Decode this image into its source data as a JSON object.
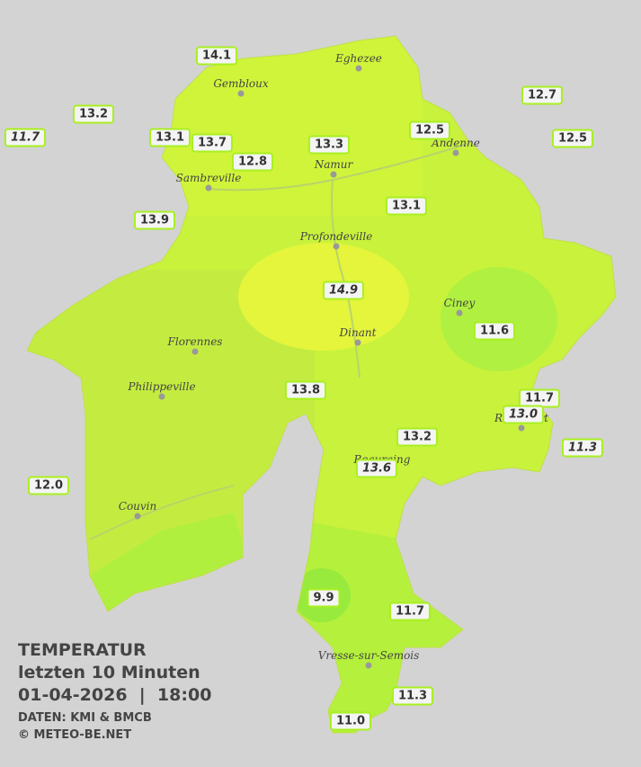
{
  "legend": {
    "title": "TEMPERATUR",
    "period": "letzten 10 Minuten",
    "datetime": "01-04-2026  |  18:00",
    "source": "DATEN: KMI & BMCB",
    "copyright": "© METEO-BE.NET"
  },
  "cities": [
    {
      "name": "Eghezee"
    },
    {
      "name": "Gembloux"
    },
    {
      "name": "Andenne"
    },
    {
      "name": "Namur"
    },
    {
      "name": "Sambreville"
    },
    {
      "name": "Profondeville"
    },
    {
      "name": "Ciney"
    },
    {
      "name": "Dinant"
    },
    {
      "name": "Florennes"
    },
    {
      "name": "Philippeville"
    },
    {
      "name": "Rochefort"
    },
    {
      "name": "Beauraing"
    },
    {
      "name": "Couvin"
    },
    {
      "name": "Vresse-sur-Semois"
    }
  ],
  "stations": [
    {
      "value": "14.1",
      "italic": false
    },
    {
      "value": "13.2",
      "italic": false
    },
    {
      "value": "11.7",
      "italic": true
    },
    {
      "value": "13.1",
      "italic": false
    },
    {
      "value": "13.7",
      "italic": false
    },
    {
      "value": "12.8",
      "italic": false
    },
    {
      "value": "13.3",
      "italic": false
    },
    {
      "value": "12.5",
      "italic": false
    },
    {
      "value": "12.7",
      "italic": false
    },
    {
      "value": "12.5",
      "italic": false
    },
    {
      "value": "13.9",
      "italic": false
    },
    {
      "value": "13.1",
      "italic": false
    },
    {
      "value": "14.9",
      "italic": true
    },
    {
      "value": "11.6",
      "italic": false
    },
    {
      "value": "13.8",
      "italic": false
    },
    {
      "value": "11.7",
      "italic": false
    },
    {
      "value": "13.2",
      "italic": false
    },
    {
      "value": "13.0",
      "italic": true
    },
    {
      "value": "11.3",
      "italic": true
    },
    {
      "value": "13.6",
      "italic": true
    },
    {
      "value": "12.0",
      "italic": false
    },
    {
      "value": "9.9",
      "italic": false
    },
    {
      "value": "11.7",
      "italic": false
    },
    {
      "value": "11.3",
      "italic": false
    },
    {
      "value": "11.0",
      "italic": false
    }
  ]
}
